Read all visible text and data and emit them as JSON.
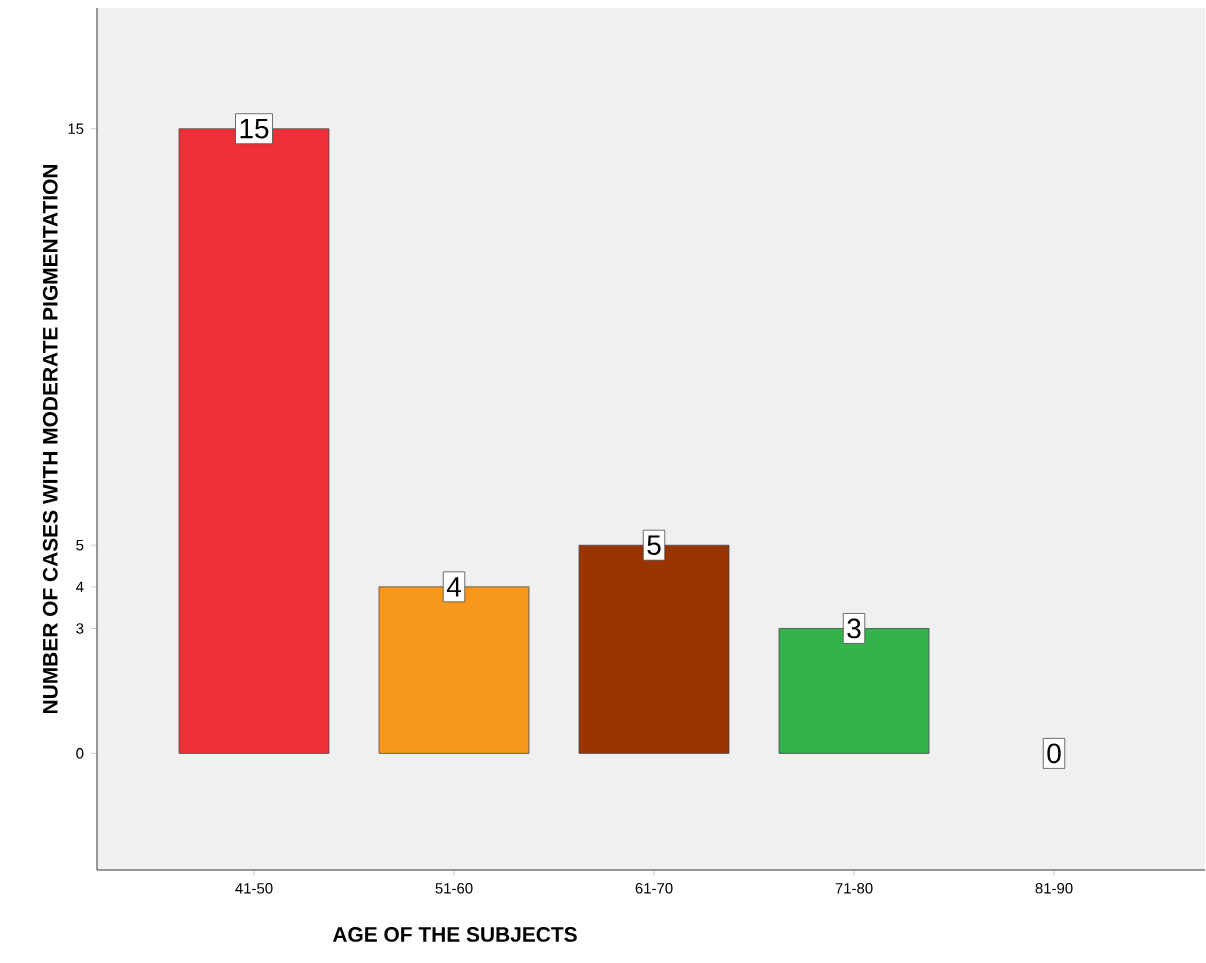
{
  "chart_data": {
    "type": "bar",
    "xlabel": "AGE OF THE SUBJECTS",
    "ylabel": "NUMBER OF CASES WITH MODERATE PIGMENTATION",
    "categories": [
      "41-50",
      "51-60",
      "61-70",
      "71-80",
      "81-90"
    ],
    "values": [
      15,
      4,
      5,
      3,
      0
    ],
    "colors": [
      "#ee3138",
      "#f7981d",
      "#993300",
      "#33b34a",
      "#5b5bff"
    ],
    "ylim": [
      -2.8,
      17.9
    ],
    "yticks": [
      0,
      3,
      4,
      5,
      15
    ],
    "data_labels": true
  }
}
